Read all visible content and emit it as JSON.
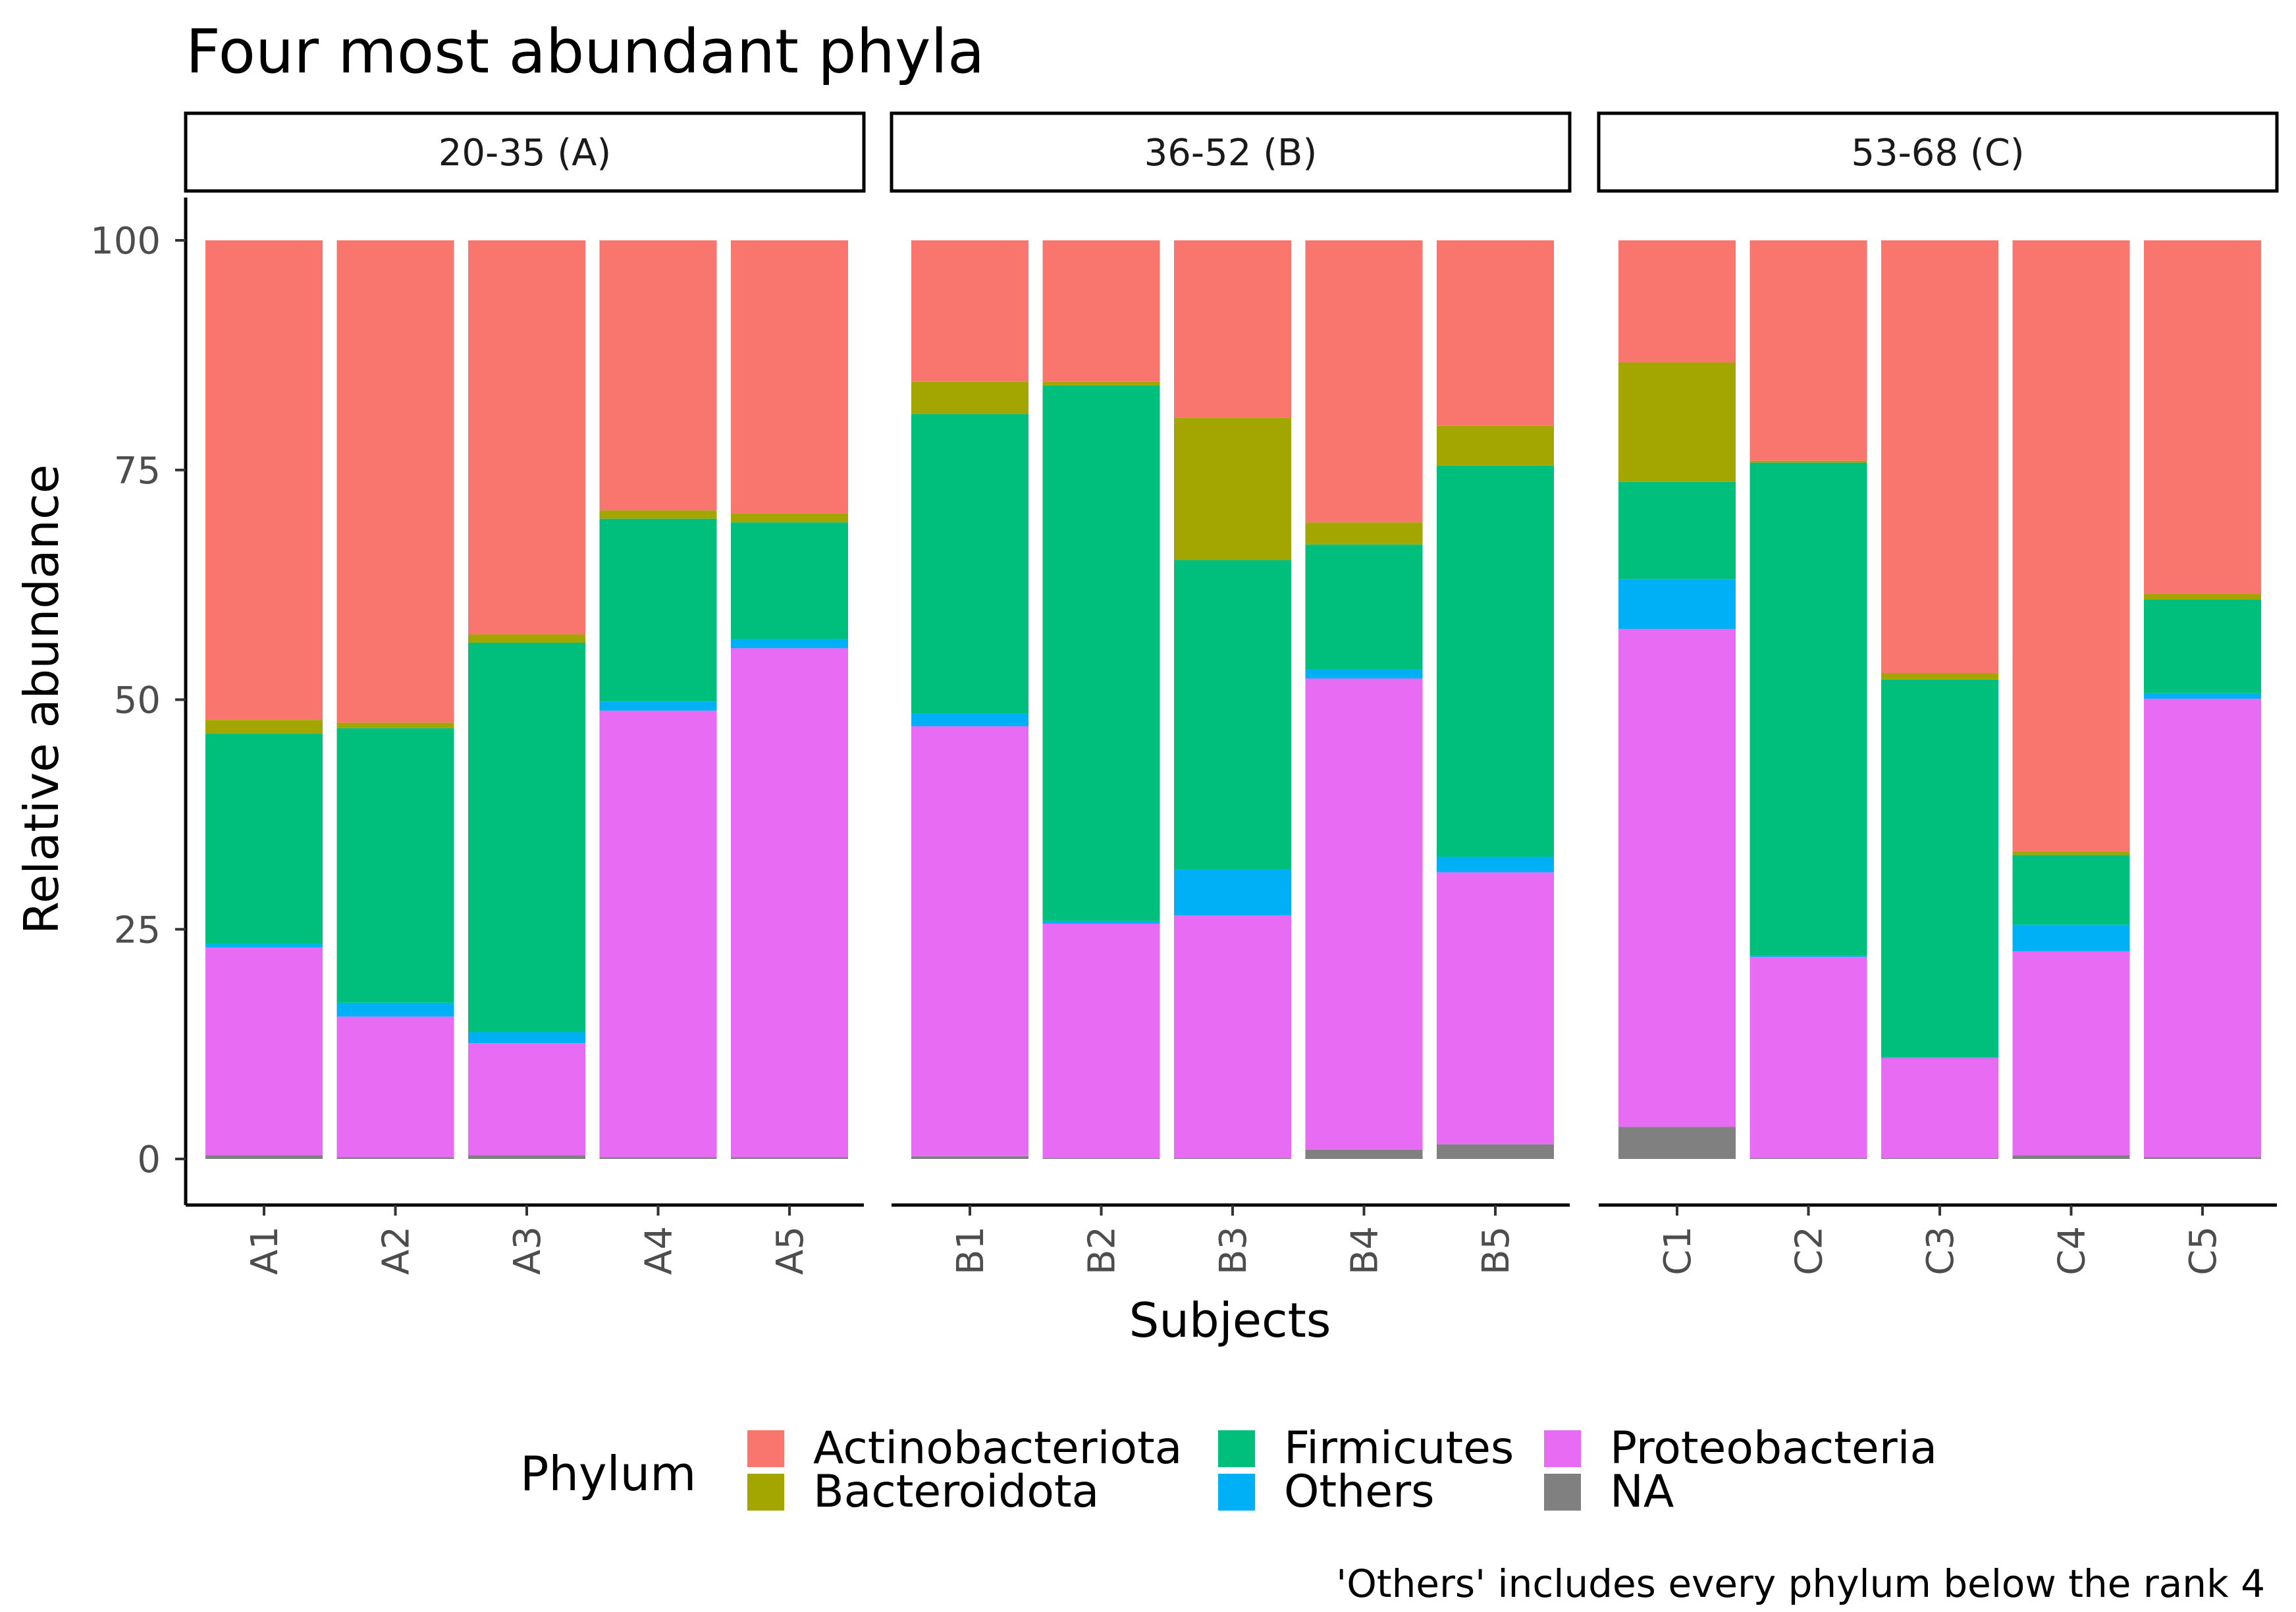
{
  "chart_data": {
    "type": "bar",
    "stacked": true,
    "title": "Four most abundant phyla",
    "xlabel": "Subjects",
    "ylabel": "Relative abundance",
    "ylim": [
      0,
      100
    ],
    "yticks": [
      0,
      25,
      50,
      75,
      100
    ],
    "legend": {
      "title": "Phylum",
      "position": "bottom",
      "entries": [
        {
          "name": "Actinobacteriota",
          "color": "#F8766D"
        },
        {
          "name": "Bacteroidota",
          "color": "#A3A500"
        },
        {
          "name": "Firmicutes",
          "color": "#00BF7D"
        },
        {
          "name": "Others",
          "color": "#00B0F6"
        },
        {
          "name": "Proteobacteria",
          "color": "#E76BF3"
        },
        {
          "name": "NA",
          "color": "#808080"
        }
      ]
    },
    "stack_order_bottom_to_top": [
      "NA",
      "Proteobacteria",
      "Others",
      "Firmicutes",
      "Bacteroidota",
      "Actinobacteriota"
    ],
    "caption": "'Others' includes every phylum below the rank 4",
    "facets": [
      {
        "label": "20-35 (A)",
        "categories": [
          "A1",
          "A2",
          "A3",
          "A4",
          "A5"
        ],
        "series": [
          {
            "name": "NA",
            "values": [
              0.4,
              0.2,
              0.4,
              0.2,
              0.2
            ]
          },
          {
            "name": "Proteobacteria",
            "values": [
              22.6,
              15.3,
              12.2,
              48.6,
              55.4
            ]
          },
          {
            "name": "Others",
            "values": [
              0.4,
              1.5,
              1.2,
              1.0,
              1.0
            ]
          },
          {
            "name": "Firmicutes",
            "values": [
              22.9,
              29.9,
              42.4,
              19.9,
              12.7
            ]
          },
          {
            "name": "Bacteroidota",
            "values": [
              1.5,
              0.6,
              0.9,
              0.9,
              1.0
            ]
          },
          {
            "name": "Actinobacteriota",
            "values": [
              52.2,
              52.5,
              42.9,
              29.4,
              29.7
            ]
          }
        ]
      },
      {
        "label": "36-52 (B)",
        "categories": [
          "B1",
          "B2",
          "B3",
          "B4",
          "B5"
        ],
        "series": [
          {
            "name": "NA",
            "values": [
              0.3,
              0.1,
              0.1,
              1.0,
              1.6
            ]
          },
          {
            "name": "Proteobacteria",
            "values": [
              46.8,
              25.5,
              26.4,
              51.3,
              29.6
            ]
          },
          {
            "name": "Others",
            "values": [
              1.4,
              0.3,
              5.0,
              1.0,
              1.7
            ]
          },
          {
            "name": "Firmicutes",
            "values": [
              32.6,
              58.3,
              33.7,
              13.6,
              42.6
            ]
          },
          {
            "name": "Bacteroidota",
            "values": [
              3.5,
              0.4,
              15.5,
              2.4,
              4.3
            ]
          },
          {
            "name": "Actinobacteriota",
            "values": [
              15.4,
              15.4,
              19.3,
              30.7,
              20.2
            ]
          }
        ]
      },
      {
        "label": "53-68 (C)",
        "categories": [
          "C1",
          "C2",
          "C3",
          "C4",
          "C5"
        ],
        "series": [
          {
            "name": "NA",
            "values": [
              3.5,
              0.1,
              0.1,
              0.4,
              0.2
            ]
          },
          {
            "name": "Proteobacteria",
            "values": [
              54.2,
              21.9,
              10.9,
              22.2,
              49.9
            ]
          },
          {
            "name": "Others",
            "values": [
              5.4,
              0.1,
              0.1,
              2.9,
              0.6
            ]
          },
          {
            "name": "Firmicutes",
            "values": [
              10.6,
              53.7,
              41.1,
              7.6,
              10.2
            ]
          },
          {
            "name": "Bacteroidota",
            "values": [
              13.0,
              0.2,
              0.7,
              0.4,
              0.6
            ]
          },
          {
            "name": "Actinobacteriota",
            "values": [
              13.3,
              24.0,
              47.1,
              66.5,
              38.5
            ]
          }
        ]
      }
    ]
  }
}
